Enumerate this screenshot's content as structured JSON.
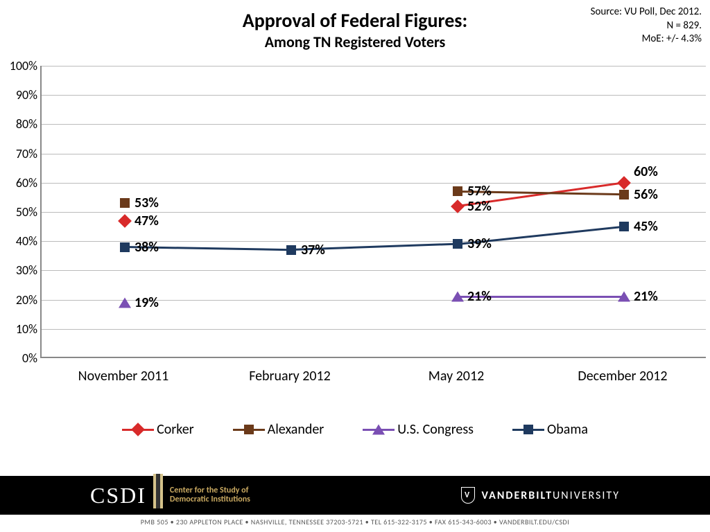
{
  "title": "Approval of Federal Figures:",
  "subtitle": "Among TN Registered Voters",
  "source_lines": [
    "Source: VU Poll, Dec 2012.",
    "N = 829.",
    "MoE: +/- 4.3%"
  ],
  "chart": {
    "type": "line",
    "ylim": [
      0,
      100
    ],
    "ytick_step": 10,
    "ytick_suffix": "%",
    "x_categories": [
      "November 2011",
      "February 2012",
      "May 2012",
      "December 2012"
    ],
    "background_color": "#ffffff",
    "grid_color": "#bbbbbb",
    "axis_color": "#888888",
    "line_width": 3,
    "label_fontsize": 20,
    "tick_fontsize": 18,
    "series": [
      {
        "name": "Corker",
        "color": "#d82a2a",
        "marker": "diamond",
        "data": [
          47,
          null,
          52,
          60
        ],
        "label_positions": [
          "right",
          null,
          "right",
          "right-above"
        ]
      },
      {
        "name": "Alexander",
        "color": "#6b3a1a",
        "marker": "square",
        "data": [
          53,
          null,
          57,
          56
        ],
        "label_positions": [
          "right",
          null,
          "right",
          "right"
        ]
      },
      {
        "name": "U.S. Congress",
        "color": "#7a4fb3",
        "marker": "triangle",
        "data": [
          19,
          null,
          21,
          21
        ],
        "label_positions": [
          "right",
          null,
          "right",
          "right"
        ]
      },
      {
        "name": "Obama",
        "color": "#1f3a5f",
        "marker": "square",
        "data": [
          38,
          37,
          39,
          45
        ],
        "label_positions": [
          "right",
          "right",
          "right",
          "right"
        ]
      }
    ]
  },
  "footer": {
    "csdi": "CSDI",
    "csdi_full": [
      "Center for the Study of",
      "Democratic Institutions"
    ],
    "vu_v": "V",
    "vu_bold": "VANDERBILT",
    "vu_rest": " UNIVERSITY",
    "small": "PMB 505 • 230 APPLETON PLACE • NASHVILLE, TENNESSEE 37203-5721 • TEL 615-322-3175 • FAX 615-343-6003 • VANDERBILT.EDU/CSDI"
  }
}
